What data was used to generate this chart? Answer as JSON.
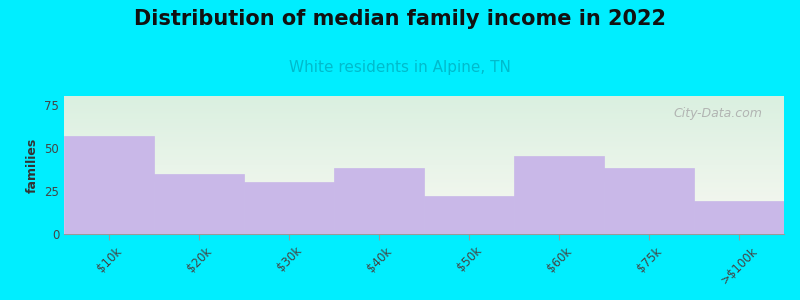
{
  "title": "Distribution of median family income in 2022",
  "subtitle": "White residents in Alpine, TN",
  "categories": [
    "$10k",
    "$20k",
    "$30k",
    "$40k",
    "$50k",
    "$60k",
    "$75k",
    ">$100k"
  ],
  "values": [
    57,
    35,
    30,
    38,
    22,
    45,
    38,
    19
  ],
  "bar_color": "#c9b8e8",
  "bar_edge_color": "#c9b8e8",
  "ylabel": "families",
  "ylim": [
    0,
    80
  ],
  "yticks": [
    0,
    25,
    50,
    75
  ],
  "background_outer": "#00eeff",
  "bg_top_color": "#daf0e0",
  "bg_bottom_color": "#f8f8f2",
  "title_fontsize": 15,
  "subtitle_fontsize": 11,
  "subtitle_color": "#00bbcc",
  "watermark_text": "City-Data.com",
  "watermark_color": "#aaaaaa"
}
